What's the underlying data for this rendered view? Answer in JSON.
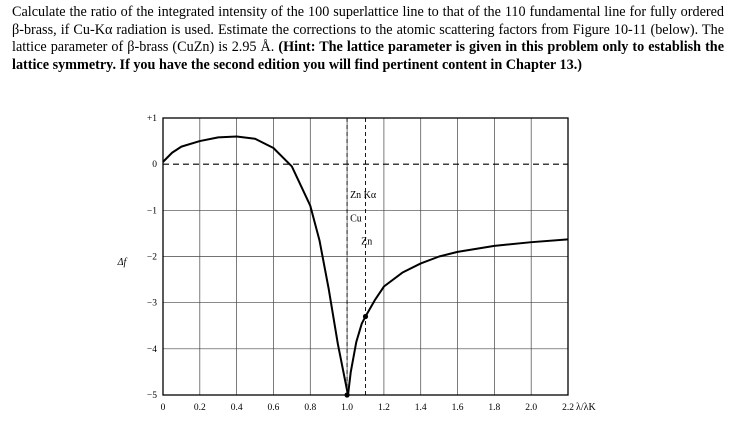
{
  "problem": {
    "plain_text": "Calculate the ratio of the integrated intensity of the 100 superlattice line to that of the 110 fundamental line for fully ordered β-brass, if Cu-Kα radiation is used.  Estimate the corrections to the atomic scattering factors from Figure 10-11 (below).  The lattice parameter of β-brass (CuZn) is 2.95 Å. ",
    "bold_text": "(Hint: The lattice parameter is given in this problem only to establish the lattice symmetry. If you have the second edition you will find pertinent content in Chapter 13.)"
  },
  "chart_data": {
    "type": "line",
    "title": "",
    "xlabel": "λ/λK",
    "ylabel": "Δf",
    "xlim": [
      0,
      2.2
    ],
    "ylim": [
      -5,
      1
    ],
    "x_ticks": [
      "0",
      "0.2",
      "0.4",
      "0.6",
      "0.8",
      "1.0",
      "1.2",
      "1.4",
      "1.6",
      "1.8",
      "2.0",
      "2.2"
    ],
    "y_ticks": [
      "+1",
      "0",
      "−1",
      "−2",
      "−3",
      "−4",
      "−5"
    ],
    "dashed_zero_line": true,
    "series": [
      {
        "x": [
          0.0,
          0.05,
          0.1,
          0.2,
          0.3,
          0.4,
          0.5,
          0.6,
          0.7,
          0.8,
          0.85,
          0.9,
          0.95,
          1.0,
          1.005
        ],
        "y": [
          0.05,
          0.25,
          0.38,
          0.5,
          0.58,
          0.6,
          0.55,
          0.35,
          -0.05,
          -0.9,
          -1.65,
          -2.7,
          -3.9,
          -4.9,
          -5.0
        ]
      },
      {
        "x": [
          1.005,
          1.02,
          1.05,
          1.08,
          1.1,
          1.15,
          1.2,
          1.3,
          1.4,
          1.5,
          1.6,
          1.8,
          2.0,
          2.2
        ],
        "y": [
          -5.0,
          -4.5,
          -3.85,
          -3.45,
          -3.3,
          -2.95,
          -2.65,
          -2.35,
          -2.15,
          -2.0,
          -1.9,
          -1.77,
          -1.69,
          -1.63
        ]
      }
    ],
    "annotations": [
      {
        "label": "Zn Kα",
        "x": 1.0,
        "y": -0.65
      },
      {
        "label": "Cu",
        "x": 1.0,
        "y": -1.15
      },
      {
        "label": "Zn",
        "x": 1.06,
        "y": -1.65
      }
    ],
    "marked_points": [
      {
        "x": 1.0,
        "y": -5.0
      },
      {
        "x": 1.1,
        "y": -3.3
      }
    ],
    "marker_lines": [
      1.0,
      1.1
    ]
  }
}
